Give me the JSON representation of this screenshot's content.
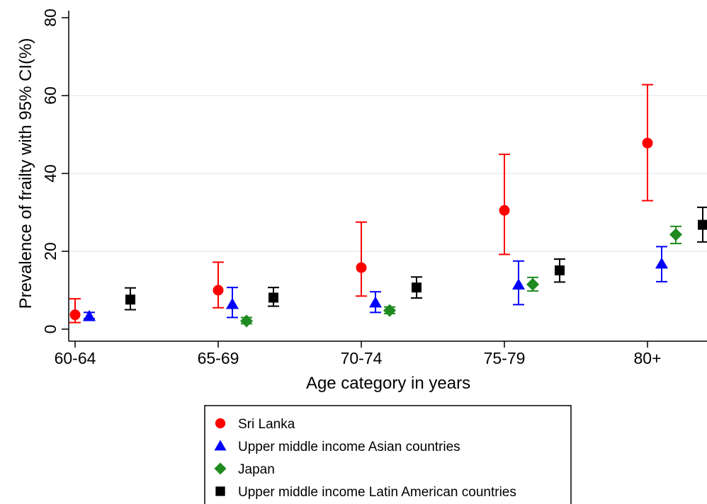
{
  "chart_data": {
    "type": "scatter",
    "xlabel": "Age category in years",
    "ylabel": "Prevalence of frailty with 95% CI(%)",
    "categories": [
      "60-64",
      "65-69",
      "70-74",
      "75-79",
      "80+"
    ],
    "ylim": [
      -2,
      80
    ],
    "yticks": [
      0,
      20,
      40,
      60,
      80
    ],
    "grid": true,
    "legend_position": "bottom",
    "series": [
      {
        "name": "Sri Lanka",
        "marker": "circle",
        "color": "#ff0000",
        "values": [
          3.7,
          10.0,
          15.8,
          30.5,
          47.8
        ],
        "ci_low": [
          1.7,
          5.5,
          8.5,
          19.2,
          33.0
        ],
        "ci_high": [
          7.8,
          17.2,
          27.5,
          44.9,
          62.8
        ]
      },
      {
        "name": "Upper middle income Asian countries",
        "marker": "triangle",
        "color": "#0000ff",
        "values": [
          3.3,
          6.4,
          6.8,
          11.4,
          16.8
        ],
        "ci_low": [
          2.7,
          3.0,
          4.3,
          6.3,
          12.2
        ],
        "ci_high": [
          4.3,
          10.7,
          9.6,
          17.5,
          21.2
        ]
      },
      {
        "name": "Japan",
        "marker": "diamond",
        "color": "#1f8a1f",
        "values": [
          null,
          2.1,
          4.8,
          11.5,
          24.3
        ],
        "ci_low": [
          null,
          1.4,
          4.0,
          9.8,
          22.0
        ],
        "ci_high": [
          null,
          3.0,
          5.7,
          13.3,
          26.4
        ]
      },
      {
        "name": "Upper middle income Latin American countries",
        "marker": "square",
        "color": "#000000",
        "values": [
          7.6,
          8.1,
          10.7,
          15.1,
          26.8
        ],
        "ci_low": [
          5.0,
          5.9,
          8.0,
          12.1,
          22.4
        ],
        "ci_high": [
          10.6,
          10.7,
          13.4,
          18.0,
          31.3
        ]
      }
    ]
  }
}
